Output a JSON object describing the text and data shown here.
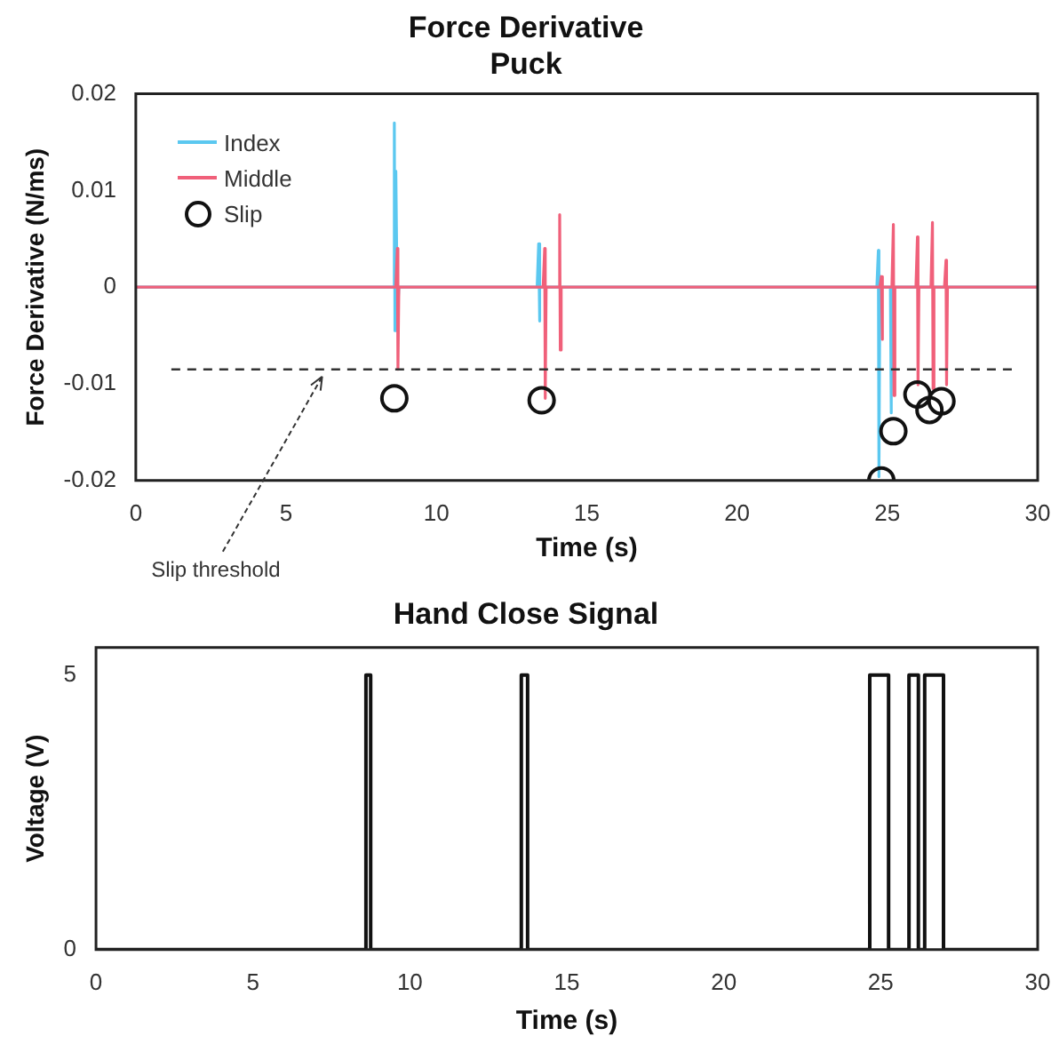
{
  "chart_data": [
    {
      "type": "line",
      "title": "Force Derivative",
      "subtitle": "Puck",
      "xlabel": "Time (s)",
      "ylabel": "Force Derivative (N/ms)",
      "xlim": [
        0,
        30
      ],
      "xticks": [
        0,
        5,
        10,
        15,
        20,
        25,
        30
      ],
      "ylim": [
        -0.02,
        0.02
      ],
      "yticks": [
        -0.02,
        -0.01,
        0,
        0.01,
        0.02
      ],
      "grid": false,
      "legend": "top left",
      "series": [
        {
          "name": "Index",
          "color": "#5bc8f0",
          "x": [
            0,
            8.55,
            8.6,
            8.62,
            8.65,
            8.7,
            8.75,
            13.35,
            13.4,
            13.42,
            13.45,
            24.65,
            24.7,
            24.72,
            24.75,
            25.1,
            25.12,
            25.14,
            25.16,
            30
          ],
          "values": [
            0,
            0,
            0.017,
            -0.0045,
            0.012,
            -0.003,
            0,
            0,
            0.0045,
            -0.0035,
            0,
            0,
            0.0038,
            -0.0196,
            0,
            0,
            -0.013,
            -0.011,
            0,
            0
          ]
        },
        {
          "name": "Middle",
          "color": "#f0607a",
          "x": [
            0,
            8.65,
            8.7,
            8.72,
            8.75,
            13.55,
            13.6,
            13.62,
            13.65,
            14.05,
            14.1,
            14.12,
            14.15,
            24.75,
            24.8,
            24.82,
            24.85,
            25.15,
            25.2,
            25.22,
            25.25,
            25.95,
            26,
            26.02,
            26.05,
            26.45,
            26.5,
            26.52,
            26.55,
            26.9,
            26.95,
            26.97,
            27,
            30
          ],
          "values": [
            0,
            0,
            0.004,
            -0.0085,
            0,
            0,
            0.004,
            -0.0115,
            0,
            0,
            0.0075,
            -0.0065,
            0,
            0,
            0.0011,
            -0.0054,
            0,
            0,
            0.0065,
            -0.0112,
            0,
            0,
            0.0052,
            -0.0101,
            0,
            0,
            0.0067,
            -0.0105,
            0,
            0,
            0.0028,
            -0.0101,
            0,
            0
          ]
        },
        {
          "name": "Slip",
          "type": "scatter",
          "marker": "circle",
          "color": "#111111",
          "x": [
            8.6,
            13.5,
            24.8,
            25.2,
            26.0,
            26.4,
            26.8
          ],
          "values": [
            -0.0115,
            -0.0117,
            -0.02,
            -0.0149,
            -0.0111,
            -0.0127,
            -0.0118
          ]
        }
      ],
      "ref_lines": [
        {
          "axis": "y",
          "value": -0.0085,
          "color": "#333333",
          "line_style": "dashed"
        }
      ],
      "annotations": [
        {
          "text": "Slip threshold",
          "x": 6.2,
          "y": -0.0085
        }
      ]
    },
    {
      "type": "step",
      "title": "Hand Close Signal",
      "xlabel": "Time (s)",
      "ylabel": "Voltage (V)",
      "xlim": [
        0,
        30
      ],
      "xticks": [
        0,
        5,
        10,
        15,
        20,
        25,
        30
      ],
      "ylim": [
        0,
        5.5
      ],
      "yticks": [
        0,
        5
      ],
      "grid": false,
      "series": [
        {
          "color": "#111111",
          "x": [
            0,
            8.6,
            8.75,
            13.55,
            13.75,
            24.65,
            25.25,
            25.9,
            26.2,
            26.4,
            27,
            30
          ],
          "values": [
            0,
            5,
            0,
            5,
            0,
            5,
            0,
            5,
            0,
            5,
            0,
            0
          ]
        }
      ]
    }
  ]
}
